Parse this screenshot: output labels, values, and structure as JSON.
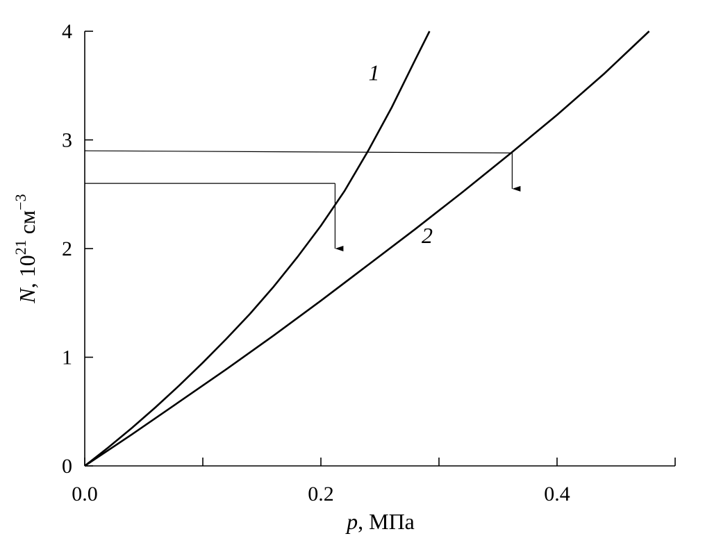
{
  "chart_data": {
    "type": "line",
    "title": "",
    "xlabel_italic": "p",
    "xlabel_rest": ", МПа",
    "ylabel_italic": "N",
    "ylabel_rest": ", 10",
    "ylabel_exp": "21",
    "ylabel_unit": " см",
    "ylabel_unit_exp": "−3",
    "xlim": [
      0,
      0.5
    ],
    "ylim": [
      0,
      4
    ],
    "x_ticks": [
      0.0,
      0.2,
      0.4
    ],
    "x_tick_labels": [
      "0.0",
      "0.2",
      "0.4"
    ],
    "x_minor_ticks": [
      0.1,
      0.3,
      0.5
    ],
    "y_ticks": [
      0,
      1,
      2,
      3,
      4
    ],
    "y_tick_labels": [
      "0",
      "1",
      "2",
      "3",
      "4"
    ],
    "grid": false,
    "series": [
      {
        "label": "1",
        "x": [
          0,
          0.02,
          0.04,
          0.06,
          0.08,
          0.1,
          0.12,
          0.14,
          0.16,
          0.18,
          0.2,
          0.22,
          0.24,
          0.26,
          0.28,
          0.292
        ],
        "y": [
          0,
          0.17,
          0.35,
          0.54,
          0.74,
          0.95,
          1.17,
          1.4,
          1.65,
          1.92,
          2.21,
          2.53,
          2.9,
          3.3,
          3.74,
          4.0
        ],
        "label_at": [
          0.245,
          3.55
        ]
      },
      {
        "label": "2",
        "x": [
          0,
          0.04,
          0.08,
          0.12,
          0.16,
          0.2,
          0.24,
          0.28,
          0.32,
          0.36,
          0.4,
          0.44,
          0.478
        ],
        "y": [
          0,
          0.29,
          0.59,
          0.89,
          1.2,
          1.52,
          1.85,
          2.18,
          2.52,
          2.87,
          3.23,
          3.61,
          4.0
        ],
        "label_at": [
          0.29,
          2.05
        ]
      }
    ],
    "guides": [
      {
        "y_start": 2.6,
        "x_end": 0.212,
        "y_end": 2.6,
        "arrow_to_y": 2.0
      },
      {
        "y_start": 2.9,
        "x_end": 0.362,
        "y_end": 2.88,
        "arrow_to_y": 2.55
      }
    ]
  }
}
